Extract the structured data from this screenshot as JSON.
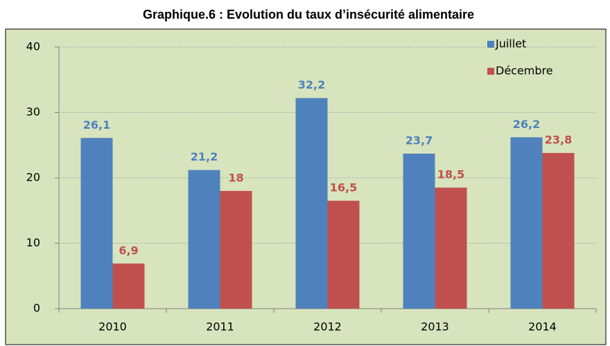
{
  "chart_data": {
    "type": "bar",
    "title": "Graphique.6 : Evolution du taux d’insécurité alimentaire",
    "categories": [
      "2010",
      "2011",
      "2012",
      "2013",
      "2014"
    ],
    "series": [
      {
        "name": "Juillet",
        "color": "#4f81bd",
        "values": [
          26.1,
          21.2,
          32.2,
          23.7,
          26.2
        ],
        "value_labels": [
          "26,1",
          "21,2",
          "32,2",
          "23,7",
          "26,2"
        ]
      },
      {
        "name": "Décembre",
        "color": "#c0504d",
        "values": [
          6.9,
          18,
          16.5,
          18.5,
          23.8
        ],
        "value_labels": [
          "6,9",
          "18",
          "16,5",
          "18,5",
          "23,8"
        ]
      }
    ],
    "ylim": [
      0,
      40
    ],
    "yticks": [
      0,
      10,
      20,
      30,
      40
    ],
    "grid": true,
    "legend": "top-right"
  }
}
